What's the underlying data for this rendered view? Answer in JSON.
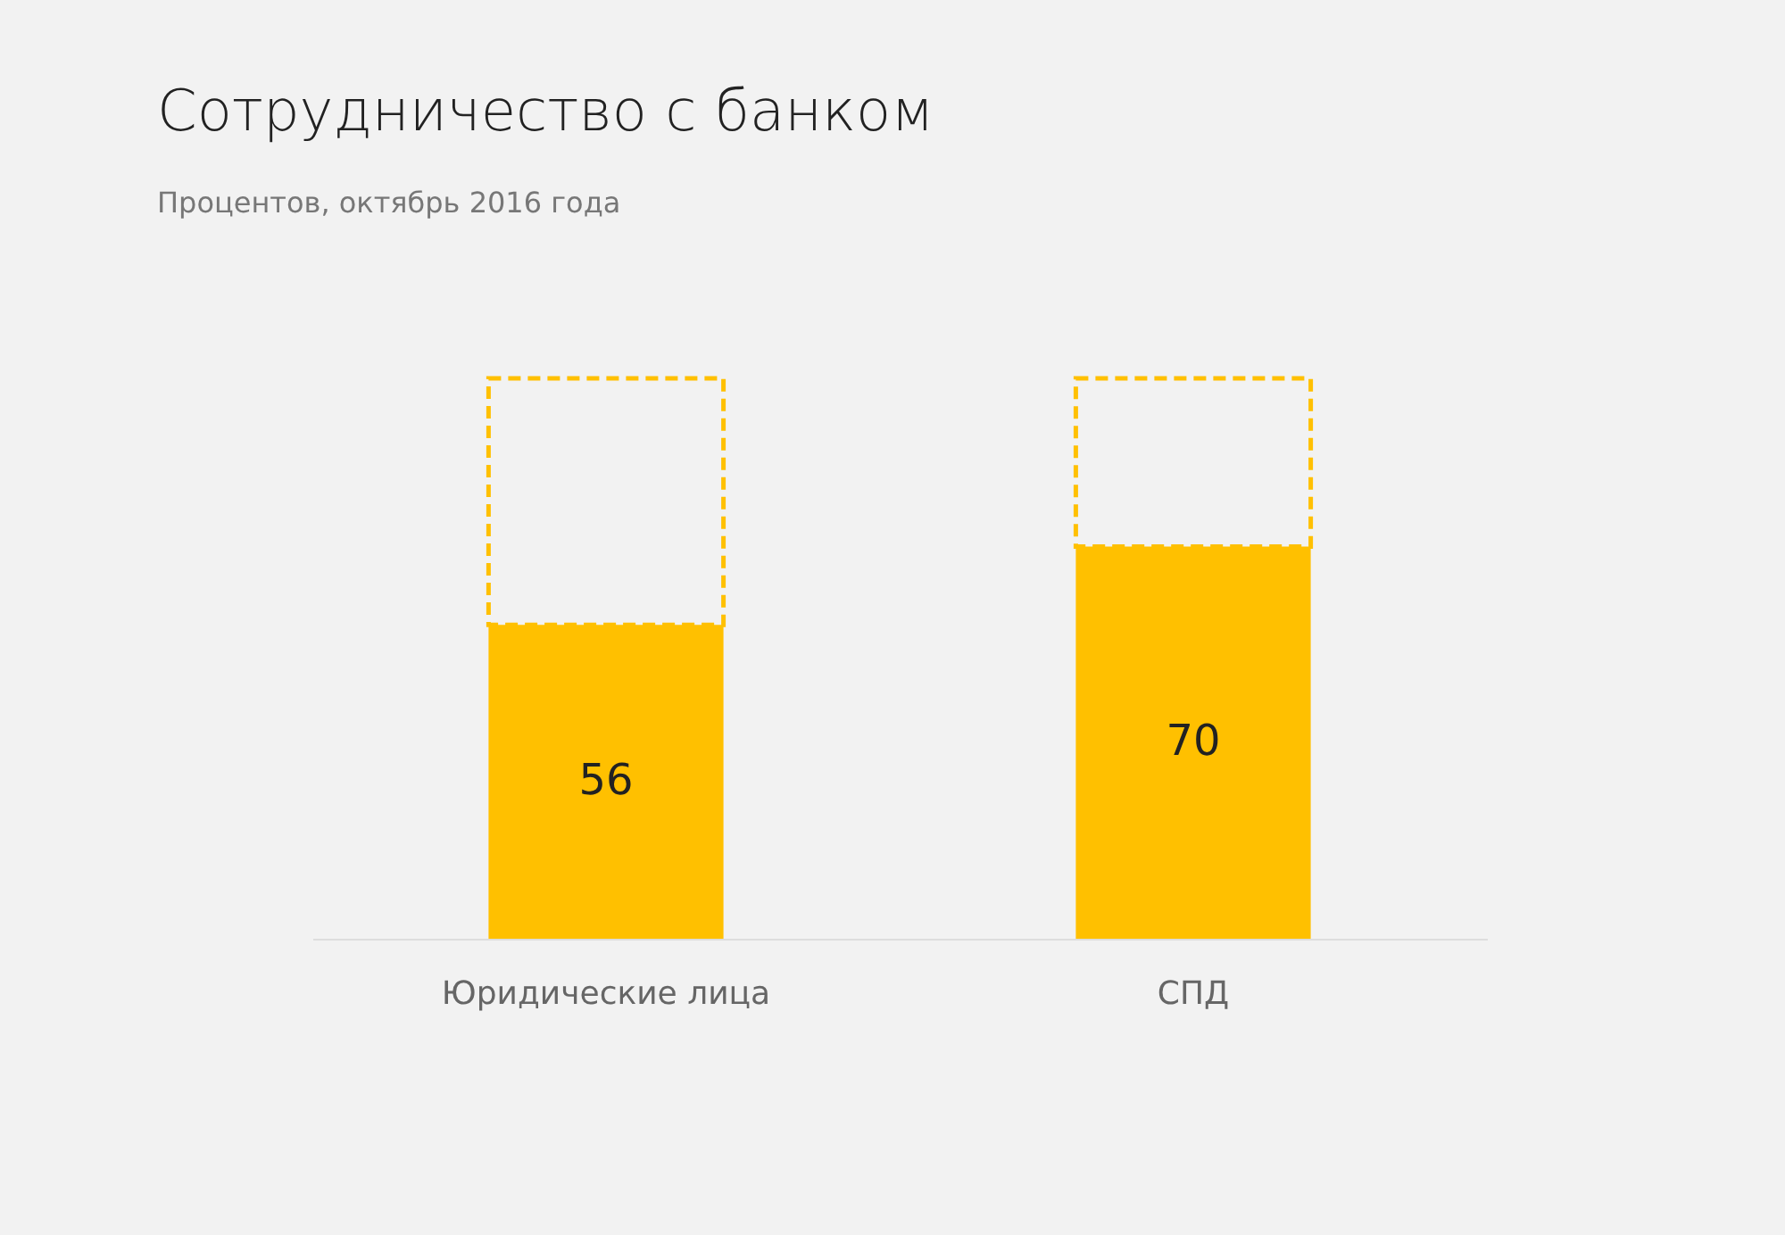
{
  "chart_data": {
    "type": "bar",
    "title": "Сотрудничество с банком",
    "subtitle": "Процентов, октябрь 2016 года",
    "categories": [
      "Юридические лица",
      "СПД"
    ],
    "stacked": true,
    "ylim": [
      0,
      100
    ],
    "tick_labels": "x",
    "series": [
      {
        "color": "#ffc000",
        "values": [
          56,
          70
        ],
        "value_labels": [
          "56",
          "70"
        ]
      },
      {
        "color": "#ffc000",
        "values": [
          44,
          30
        ],
        "line_style": "dashed"
      }
    ]
  }
}
